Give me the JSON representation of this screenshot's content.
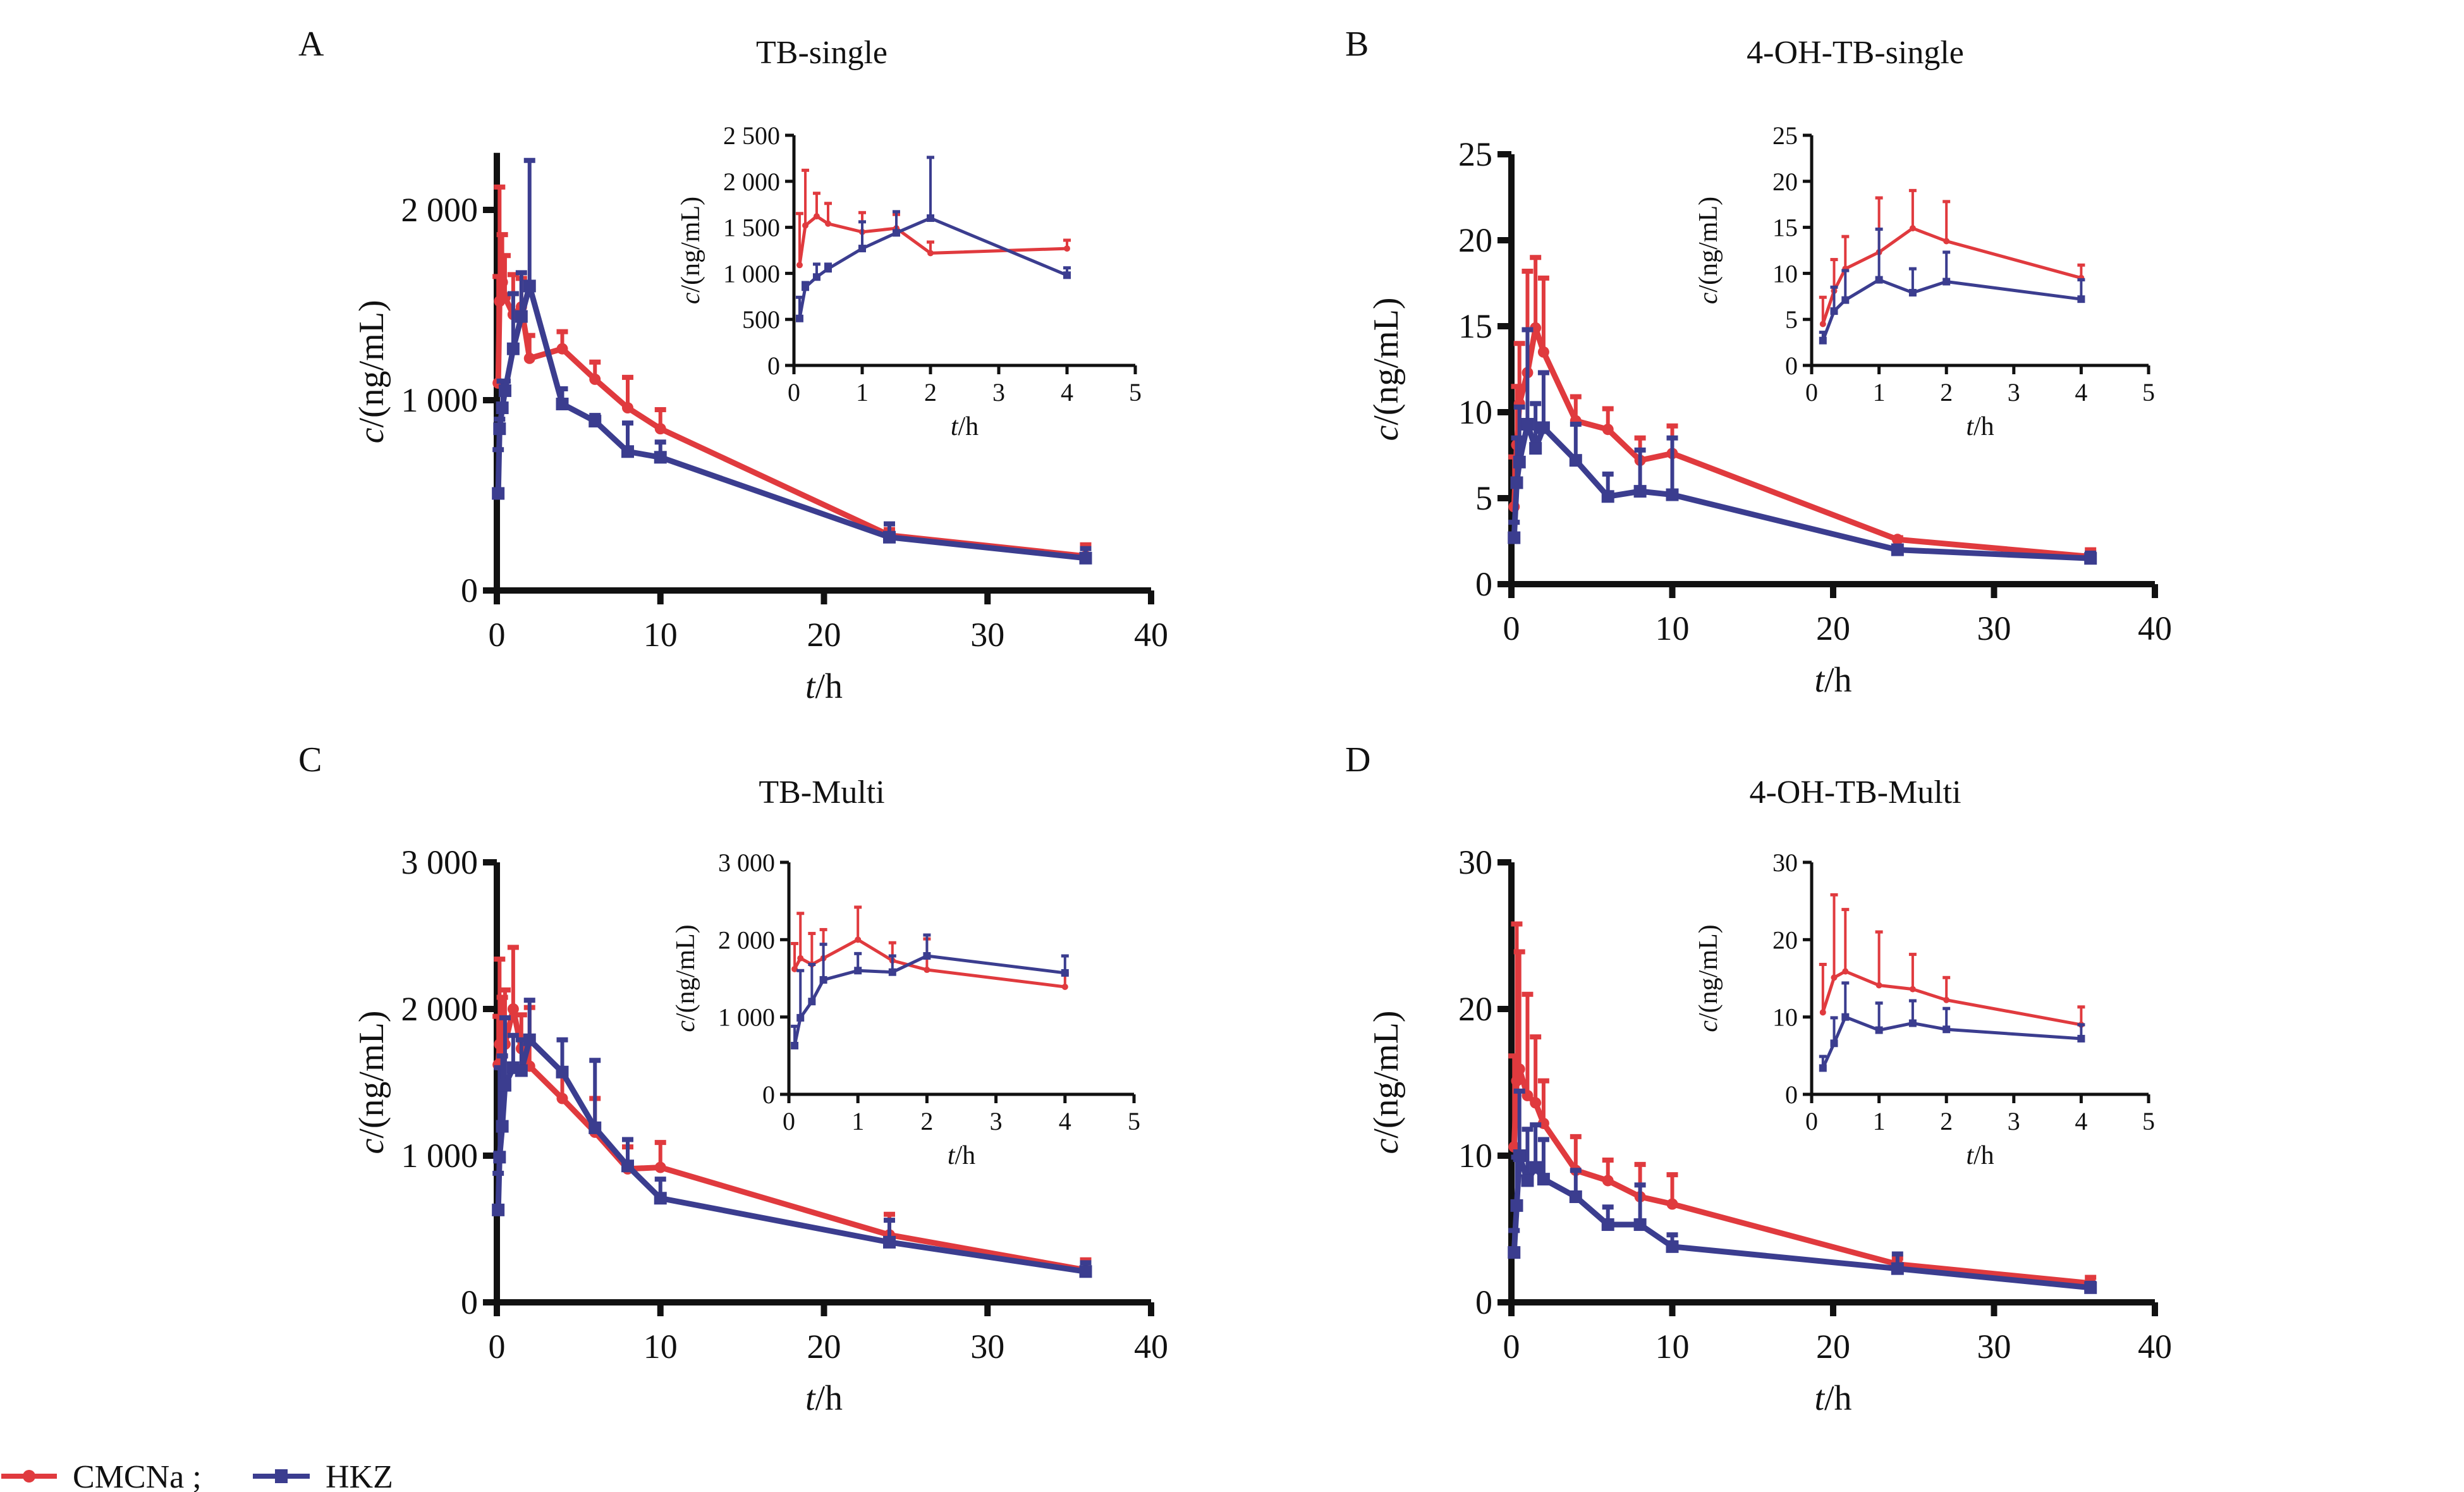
{
  "figure": {
    "legend": [
      {
        "label": "CMCNa ;",
        "marker": "circle",
        "color": "#e03a3e"
      },
      {
        "label": "HKZ",
        "marker": "square",
        "color": "#3b3d8f"
      }
    ],
    "colors": {
      "CMCNa": "#e03a3e",
      "HKZ": "#3b3d8f",
      "axis": "#111111"
    }
  },
  "chart_data": [
    {
      "panel": "A",
      "title": "TB-single",
      "type": "line",
      "xlabel": "t/h",
      "ylabel": "c/(ng/mL)",
      "xlim": [
        0,
        40
      ],
      "ylim": [
        0,
        2300
      ],
      "xticks": [
        "0",
        "10",
        "20",
        "30",
        "40"
      ],
      "xtick_values": [
        0,
        10,
        20,
        30,
        40
      ],
      "yticks": [
        "0",
        "1 000",
        "2 000"
      ],
      "ytick_values": [
        0,
        1000,
        2000
      ],
      "error_bars": "upper (+SD)",
      "series": [
        {
          "name": "CMCNa",
          "x": [
            0.083,
            0.167,
            0.333,
            0.5,
            1,
            1.5,
            2,
            4,
            6,
            8,
            10,
            24,
            36
          ],
          "y": [
            1090,
            1520,
            1620,
            1540,
            1450,
            1490,
            1220,
            1270,
            1110,
            960,
            850,
            290,
            180
          ],
          "err_upper": [
            1650,
            2120,
            1870,
            1760,
            1660,
            1640,
            1340,
            1360,
            1200,
            1120,
            950,
            320,
            240
          ]
        },
        {
          "name": "HKZ",
          "x": [
            0.083,
            0.167,
            0.333,
            0.5,
            1,
            1.5,
            2,
            4,
            6,
            8,
            10,
            24,
            36
          ],
          "y": [
            510,
            850,
            960,
            1050,
            1270,
            1440,
            1600,
            980,
            890,
            730,
            700,
            280,
            170
          ],
          "err_upper": [
            740,
            900,
            1100,
            1100,
            1560,
            1670,
            2260,
            1060,
            920,
            880,
            780,
            350,
            220
          ]
        }
      ],
      "inset": {
        "xlabel": "t/h",
        "ylabel": "c/(ng/mL)",
        "xlim": [
          0,
          5
        ],
        "ylim": [
          0,
          2500
        ],
        "xticks": [
          "0",
          "1",
          "2",
          "3",
          "4",
          "5"
        ],
        "xtick_values": [
          0,
          1,
          2,
          3,
          4,
          5
        ],
        "yticks": [
          "0",
          "500",
          "1 000",
          "1 500",
          "2 000",
          "2 500"
        ],
        "ytick_values": [
          0,
          500,
          1000,
          1500,
          2000,
          2500
        ]
      }
    },
    {
      "panel": "B",
      "title": "4-OH-TB-single",
      "type": "line",
      "xlabel": "t/h",
      "ylabel": "c/(ng/mL)",
      "xlim": [
        0,
        40
      ],
      "ylim": [
        0,
        25
      ],
      "xticks": [
        "0",
        "10",
        "20",
        "30",
        "40"
      ],
      "xtick_values": [
        0,
        10,
        20,
        30,
        40
      ],
      "yticks": [
        "0",
        "5",
        "10",
        "15",
        "20",
        "25"
      ],
      "ytick_values": [
        0,
        5,
        10,
        15,
        20,
        25
      ],
      "error_bars": "upper (+SD)",
      "series": [
        {
          "name": "CMCNa",
          "x": [
            0.167,
            0.333,
            0.5,
            1,
            1.5,
            2,
            4,
            6,
            8,
            10,
            24,
            36
          ],
          "y": [
            4.5,
            8.1,
            10.5,
            12.3,
            14.9,
            13.5,
            9.5,
            9.0,
            7.2,
            7.6,
            2.6,
            1.6
          ],
          "err_upper": [
            7.4,
            11.5,
            14.0,
            18.2,
            19.0,
            17.8,
            10.9,
            10.2,
            8.5,
            9.2,
            2.7,
            2.0
          ]
        },
        {
          "name": "HKZ",
          "x": [
            0.167,
            0.333,
            0.5,
            1,
            1.5,
            2,
            4,
            6,
            8,
            10,
            24,
            36
          ],
          "y": [
            2.7,
            5.9,
            7.1,
            9.3,
            7.9,
            9.1,
            7.2,
            5.1,
            5.4,
            5.2,
            2.0,
            1.5
          ],
          "err_upper": [
            3.6,
            8.5,
            10.3,
            14.8,
            10.5,
            12.3,
            9.3,
            6.4,
            7.8,
            8.5,
            2.1,
            1.8
          ]
        }
      ],
      "inset": {
        "xlabel": "t/h",
        "ylabel": "c/(ng/mL)",
        "xlim": [
          0,
          5
        ],
        "ylim": [
          0,
          25
        ],
        "xticks": [
          "0",
          "1",
          "2",
          "3",
          "4",
          "5"
        ],
        "xtick_values": [
          0,
          1,
          2,
          3,
          4,
          5
        ],
        "yticks": [
          "0",
          "5",
          "10",
          "15",
          "20",
          "25"
        ],
        "ytick_values": [
          0,
          5,
          10,
          15,
          20,
          25
        ]
      }
    },
    {
      "panel": "C",
      "title": "TB-Multi",
      "type": "line",
      "xlabel": "t/h",
      "ylabel": "c/(ng/mL)",
      "xlim": [
        0,
        40
      ],
      "ylim": [
        0,
        3000
      ],
      "xticks": [
        "0",
        "10",
        "20",
        "30",
        "40"
      ],
      "xtick_values": [
        0,
        10,
        20,
        30,
        40
      ],
      "yticks": [
        "0",
        "1 000",
        "2 000",
        "3 000"
      ],
      "ytick_values": [
        0,
        1000,
        2000,
        3000
      ],
      "error_bars": "upper (+SD)",
      "series": [
        {
          "name": "CMCNa",
          "x": [
            0.083,
            0.167,
            0.333,
            0.5,
            1,
            1.5,
            2,
            4,
            6,
            8,
            10,
            24,
            36
          ],
          "y": [
            1620,
            1760,
            1680,
            1760,
            2000,
            1730,
            1610,
            1390,
            1160,
            910,
            920,
            460,
            220
          ],
          "err_upper": [
            1950,
            2340,
            2080,
            2130,
            2420,
            1960,
            2010,
            1560,
            1390,
            1060,
            1090,
            600,
            290
          ]
        },
        {
          "name": "HKZ",
          "x": [
            0.083,
            0.167,
            0.333,
            0.5,
            1,
            1.5,
            2,
            4,
            6,
            8,
            10,
            24,
            36
          ],
          "y": [
            630,
            990,
            1200,
            1480,
            1600,
            1580,
            1790,
            1570,
            1190,
            930,
            710,
            410,
            210
          ],
          "err_upper": [
            880,
            1600,
            1680,
            1940,
            1820,
            1790,
            2060,
            1790,
            1650,
            1110,
            840,
            560,
            270
          ]
        }
      ],
      "inset": {
        "xlabel": "t/h",
        "ylabel": "c/(ng/mL)",
        "xlim": [
          0,
          5
        ],
        "ylim": [
          0,
          3000
        ],
        "xticks": [
          "0",
          "1",
          "2",
          "3",
          "4",
          "5"
        ],
        "xtick_values": [
          0,
          1,
          2,
          3,
          4,
          5
        ],
        "yticks": [
          "0",
          "1 000",
          "2 000",
          "3 000"
        ],
        "ytick_values": [
          0,
          1000,
          2000,
          3000
        ]
      }
    },
    {
      "panel": "D",
      "title": "4-OH-TB-Multi",
      "type": "line",
      "xlabel": "t/h",
      "ylabel": "c/(ng/mL)",
      "xlim": [
        0,
        40
      ],
      "ylim": [
        0,
        30
      ],
      "xticks": [
        "0",
        "10",
        "20",
        "30",
        "40"
      ],
      "xtick_values": [
        0,
        10,
        20,
        30,
        40
      ],
      "yticks": [
        "0",
        "10",
        "20",
        "30"
      ],
      "ytick_values": [
        0,
        10,
        20,
        30
      ],
      "error_bars": "upper (+SD)",
      "series": [
        {
          "name": "CMCNa",
          "x": [
            0.167,
            0.333,
            0.5,
            1,
            1.5,
            2,
            4,
            6,
            8,
            10,
            24,
            36
          ],
          "y": [
            10.6,
            15.1,
            15.9,
            14.1,
            13.6,
            12.2,
            9.0,
            8.3,
            7.2,
            6.7,
            2.6,
            1.3
          ],
          "err_upper": [
            16.8,
            25.8,
            23.9,
            21.0,
            18.1,
            15.1,
            11.3,
            9.7,
            9.4,
            8.7,
            3.0,
            1.7
          ]
        },
        {
          "name": "HKZ",
          "x": [
            0.167,
            0.333,
            0.5,
            1,
            1.5,
            2,
            4,
            6,
            8,
            10,
            24,
            36
          ],
          "y": [
            3.4,
            6.6,
            10.0,
            8.3,
            9.2,
            8.4,
            7.2,
            5.3,
            5.3,
            3.8,
            2.3,
            1.0
          ],
          "err_upper": [
            4.9,
            9.9,
            14.4,
            11.8,
            12.1,
            11.1,
            9.0,
            6.5,
            8.0,
            4.6,
            3.3,
            1.3
          ]
        }
      ],
      "inset": {
        "xlabel": "t/h",
        "ylabel": "c/(ng/mL)",
        "xlim": [
          0,
          5
        ],
        "ylim": [
          0,
          30
        ],
        "xticks": [
          "0",
          "1",
          "2",
          "3",
          "4",
          "5"
        ],
        "xtick_values": [
          0,
          1,
          2,
          3,
          4,
          5
        ],
        "yticks": [
          "0",
          "10",
          "20",
          "30"
        ],
        "ytick_values": [
          0,
          10,
          20,
          30
        ]
      }
    }
  ]
}
